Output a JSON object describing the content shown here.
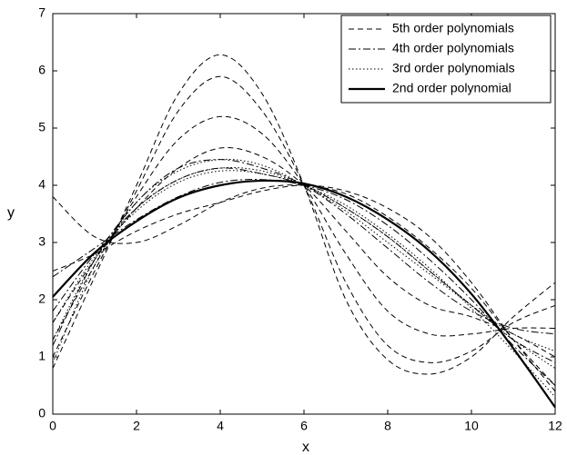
{
  "chart_data": {
    "type": "line",
    "x_label": "x",
    "y_label": "y",
    "x": [
      0,
      1,
      2,
      3,
      4,
      5,
      6,
      7,
      8,
      9,
      10,
      11,
      12
    ],
    "xlim": [
      0,
      12
    ],
    "xticks": [
      0,
      2,
      4,
      6,
      8,
      10,
      12
    ],
    "ylim": [
      0,
      7
    ],
    "yticks": [
      0,
      1,
      2,
      3,
      4,
      5,
      6,
      7
    ],
    "legend": "upper right",
    "series": [
      {
        "name": "5th order polynomials",
        "color": "#000000",
        "style": "dashed",
        "curves": [
          [
            0.8,
            2.4,
            4.0,
            5.6,
            6.28,
            5.6,
            4.0,
            2.0,
            0.95,
            0.7,
            1.0,
            1.7,
            2.3
          ],
          [
            1.0,
            2.5,
            3.9,
            5.3,
            5.9,
            5.3,
            4.0,
            2.3,
            1.2,
            0.9,
            1.1,
            1.6,
            1.9
          ],
          [
            1.3,
            2.6,
            3.8,
            4.8,
            5.2,
            4.9,
            4.0,
            2.8,
            1.8,
            1.4,
            1.4,
            1.5,
            1.5
          ],
          [
            1.6,
            2.7,
            3.6,
            4.3,
            4.65,
            4.5,
            4.0,
            3.2,
            2.4,
            1.9,
            1.7,
            1.4,
            1.0
          ],
          [
            3.8,
            3.1,
            3.0,
            3.3,
            3.7,
            3.95,
            4.0,
            3.85,
            3.45,
            2.9,
            2.2,
            1.3,
            0.5
          ],
          [
            2.5,
            2.8,
            3.2,
            3.5,
            3.7,
            3.9,
            4.0,
            3.9,
            3.6,
            3.1,
            2.3,
            1.3,
            0.4
          ]
        ]
      },
      {
        "name": "4th order polynomials",
        "color": "#000000",
        "style": "dashdot",
        "curves": [
          [
            1.2,
            2.7,
            3.7,
            4.3,
            4.45,
            4.3,
            4.0,
            3.5,
            2.9,
            2.3,
            1.8,
            1.5,
            1.4
          ],
          [
            1.8,
            2.8,
            3.6,
            4.1,
            4.3,
            4.2,
            4.0,
            3.6,
            3.1,
            2.5,
            1.9,
            1.3,
            0.9
          ],
          [
            2.4,
            2.9,
            3.4,
            3.8,
            4.05,
            4.1,
            4.0,
            3.75,
            3.3,
            2.7,
            2.0,
            1.2,
            0.5
          ]
        ]
      },
      {
        "name": "3rd order polynomials",
        "color": "#000000",
        "style": "dotted",
        "curves": [
          [
            0.9,
            2.6,
            3.7,
            4.25,
            4.45,
            4.35,
            4.0,
            3.55,
            3.0,
            2.45,
            1.9,
            1.4,
            1.1
          ],
          [
            1.3,
            2.7,
            3.6,
            4.1,
            4.3,
            4.25,
            4.0,
            3.6,
            3.1,
            2.5,
            1.9,
            1.3,
            0.8
          ],
          [
            1.6,
            2.75,
            3.55,
            4.05,
            4.25,
            4.2,
            4.0,
            3.65,
            3.15,
            2.55,
            1.85,
            1.1,
            0.3
          ]
        ]
      },
      {
        "name": "2nd order polynomial",
        "color": "#000000",
        "style": "solid",
        "curves": [
          [
            2.05,
            2.82,
            3.37,
            3.78,
            4.0,
            4.08,
            4.03,
            3.8,
            3.4,
            2.85,
            2.1,
            1.15,
            0.12
          ]
        ]
      }
    ]
  }
}
